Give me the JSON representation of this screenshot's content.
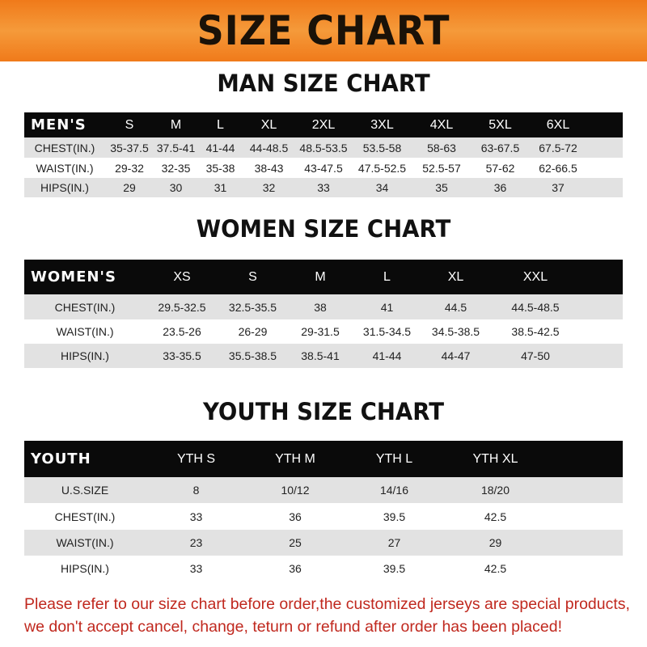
{
  "banner_title": "SIZE CHART",
  "men": {
    "title": "MAN SIZE CHART",
    "header_label": "MEN'S",
    "sizes": [
      "S",
      "M",
      "L",
      "XL",
      "2XL",
      "3XL",
      "4XL",
      "5XL",
      "6XL"
    ],
    "rows": [
      {
        "label": "CHEST(IN.)",
        "values": [
          "35-37.5",
          "37.5-41",
          "41-44",
          "44-48.5",
          "48.5-53.5",
          "53.5-58",
          "58-63",
          "63-67.5",
          "67.5-72"
        ]
      },
      {
        "label": "WAIST(IN.)",
        "values": [
          "29-32",
          "32-35",
          "35-38",
          "38-43",
          "43-47.5",
          "47.5-52.5",
          "52.5-57",
          "57-62",
          "62-66.5"
        ]
      },
      {
        "label": "HIPS(IN.)",
        "values": [
          "29",
          "30",
          "31",
          "32",
          "33",
          "34",
          "35",
          "36",
          "37"
        ]
      }
    ]
  },
  "women": {
    "title": "WOMEN SIZE CHART",
    "header_label": "WOMEN'S",
    "sizes": [
      "XS",
      "S",
      "M",
      "L",
      "XL",
      "XXL"
    ],
    "rows": [
      {
        "label": "CHEST(IN.)",
        "values": [
          "29.5-32.5",
          "32.5-35.5",
          "38",
          "41",
          "44.5",
          "44.5-48.5"
        ]
      },
      {
        "label": "WAIST(IN.)",
        "values": [
          "23.5-26",
          "26-29",
          "29-31.5",
          "31.5-34.5",
          "34.5-38.5",
          "38.5-42.5"
        ]
      },
      {
        "label": "HIPS(IN.)",
        "values": [
          "33-35.5",
          "35.5-38.5",
          "38.5-41",
          "41-44",
          "44-47",
          "47-50"
        ]
      }
    ]
  },
  "youth": {
    "title": "YOUTH SIZE CHART",
    "header_label": "YOUTH",
    "sizes": [
      "YTH S",
      "YTH M",
      "YTH L",
      "YTH XL"
    ],
    "rows": [
      {
        "label": "U.S.SIZE",
        "values": [
          "8",
          "10/12",
          "14/16",
          "18/20"
        ]
      },
      {
        "label": "CHEST(IN.)",
        "values": [
          "33",
          "36",
          "39.5",
          "42.5"
        ]
      },
      {
        "label": "WAIST(IN.)",
        "values": [
          "23",
          "25",
          "27",
          "29"
        ]
      },
      {
        "label": "HIPS(IN.)",
        "values": [
          "33",
          "36",
          "39.5",
          "42.5"
        ]
      }
    ]
  },
  "note": {
    "line1": "Please refer to our size chart before order,the customized jerseys are special products,",
    "line2": "we don't accept cancel, change, teturn or refund after order has been placed!"
  }
}
